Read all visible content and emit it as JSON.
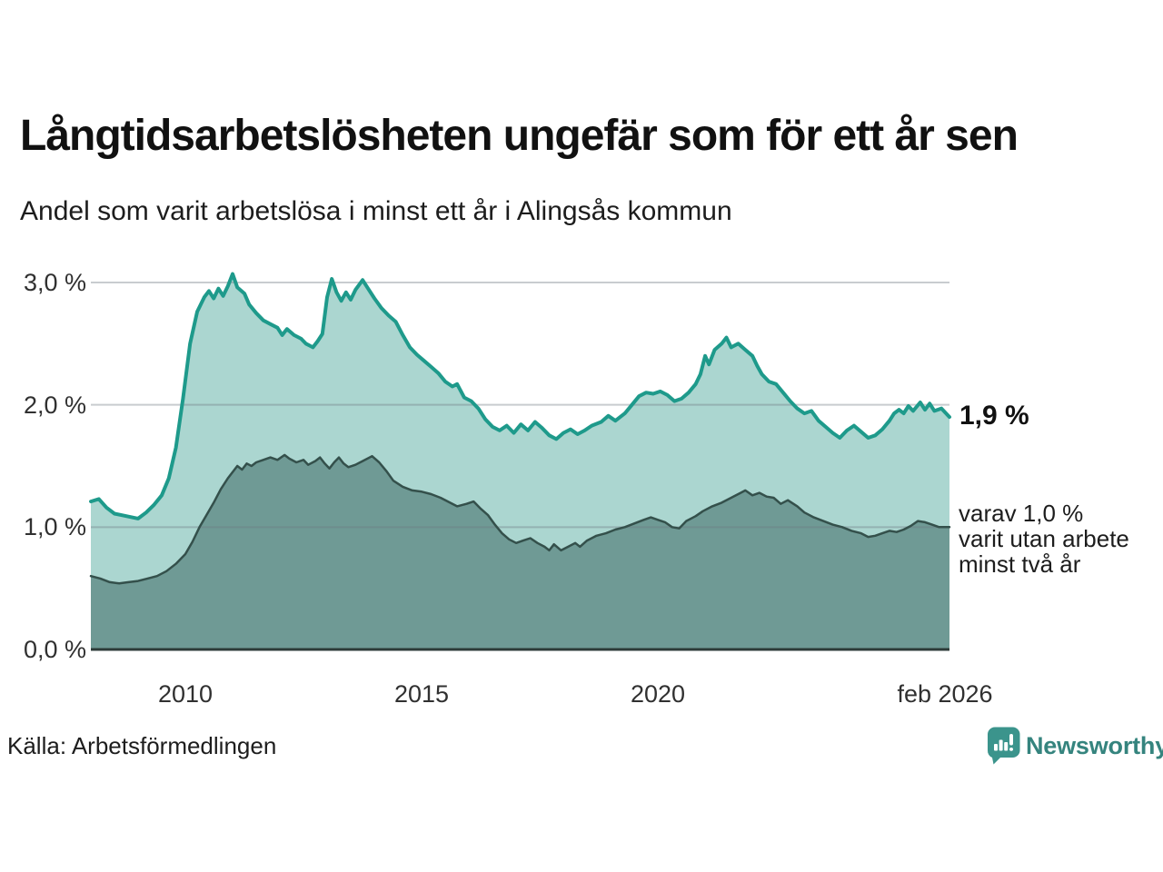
{
  "title": "Långtidsarbetslösheten ungefär som för ett år sen",
  "subtitle": "Andel som varit arbetslösa i minst ett år i Alingsås kommun",
  "source": "Källa: Arbetsförmedlingen",
  "branding": {
    "name": "Newsworthy"
  },
  "annotations": {
    "latest_total": "1,9 %",
    "note_lines": [
      "varav 1,0 %",
      "varit utan arbete",
      "minst två år"
    ]
  },
  "colors": {
    "teal_line": "#1e9a8b",
    "light_fill": "#abd6d0",
    "dark_line": "#34504b",
    "dark_fill": "#6f9a95",
    "gridline": "rgba(110,122,128,0.38)",
    "baseline": "#2d3b38",
    "brand_teal": "#35847e",
    "logo_teal": "#3b948c"
  },
  "chart_data": {
    "type": "area",
    "title": "Långtidsarbetslösheten ungefär som för ett år sen",
    "subtitle": "Andel som varit arbetslösa i minst ett år i Alingsås kommun",
    "unit": "%",
    "grid": "horizontal",
    "legend": "none",
    "x_range": [
      2008,
      2026.17
    ],
    "y_range": [
      0,
      3.1
    ],
    "y_gridlines": [
      1,
      2,
      3
    ],
    "y_ticks": [
      {
        "label": "3,0 %",
        "value": 3
      },
      {
        "label": "2,0 %",
        "value": 2
      },
      {
        "label": "1,0 %",
        "value": 1
      },
      {
        "label": "0,0 %",
        "value": 0
      }
    ],
    "x_ticks": [
      {
        "label": "2010",
        "x": 2010
      },
      {
        "label": "2015",
        "x": 2015
      },
      {
        "label": "2020",
        "x": 2020
      },
      {
        "label": "feb 2026",
        "x": 2026.08
      }
    ],
    "series": [
      {
        "name": "Andel som varit arbetslösa i minst ett år",
        "line_color": "#1e9a8b",
        "fill_color": "#abd6d0",
        "end_value": 1.9,
        "end_label": "1,9 %",
        "points": [
          [
            2008,
            1.21
          ],
          [
            2008.17,
            1.23
          ],
          [
            2008.33,
            1.16
          ],
          [
            2008.5,
            1.11
          ],
          [
            2008.75,
            1.09
          ],
          [
            2009,
            1.07
          ],
          [
            2009.17,
            1.12
          ],
          [
            2009.33,
            1.18
          ],
          [
            2009.5,
            1.26
          ],
          [
            2009.65,
            1.4
          ],
          [
            2009.8,
            1.65
          ],
          [
            2009.95,
            2.05
          ],
          [
            2010.1,
            2.5
          ],
          [
            2010.25,
            2.76
          ],
          [
            2010.4,
            2.88
          ],
          [
            2010.5,
            2.93
          ],
          [
            2010.6,
            2.87
          ],
          [
            2010.7,
            2.95
          ],
          [
            2010.8,
            2.89
          ],
          [
            2010.9,
            2.97
          ],
          [
            2011,
            3.07
          ],
          [
            2011.1,
            2.96
          ],
          [
            2011.25,
            2.91
          ],
          [
            2011.35,
            2.82
          ],
          [
            2011.5,
            2.75
          ],
          [
            2011.65,
            2.69
          ],
          [
            2011.8,
            2.66
          ],
          [
            2011.95,
            2.63
          ],
          [
            2012.05,
            2.57
          ],
          [
            2012.15,
            2.62
          ],
          [
            2012.3,
            2.57
          ],
          [
            2012.45,
            2.54
          ],
          [
            2012.55,
            2.5
          ],
          [
            2012.7,
            2.47
          ],
          [
            2012.8,
            2.52
          ],
          [
            2012.9,
            2.58
          ],
          [
            2013,
            2.88
          ],
          [
            2013.1,
            3.03
          ],
          [
            2013.2,
            2.92
          ],
          [
            2013.3,
            2.85
          ],
          [
            2013.4,
            2.92
          ],
          [
            2013.5,
            2.86
          ],
          [
            2013.6,
            2.94
          ],
          [
            2013.75,
            3.02
          ],
          [
            2013.85,
            2.96
          ],
          [
            2014,
            2.87
          ],
          [
            2014.15,
            2.79
          ],
          [
            2014.3,
            2.73
          ],
          [
            2014.45,
            2.68
          ],
          [
            2014.6,
            2.57
          ],
          [
            2014.75,
            2.47
          ],
          [
            2014.9,
            2.41
          ],
          [
            2015.05,
            2.36
          ],
          [
            2015.2,
            2.31
          ],
          [
            2015.35,
            2.26
          ],
          [
            2015.5,
            2.19
          ],
          [
            2015.65,
            2.15
          ],
          [
            2015.75,
            2.17
          ],
          [
            2015.9,
            2.06
          ],
          [
            2016.05,
            2.03
          ],
          [
            2016.2,
            1.97
          ],
          [
            2016.35,
            1.88
          ],
          [
            2016.5,
            1.82
          ],
          [
            2016.65,
            1.79
          ],
          [
            2016.8,
            1.83
          ],
          [
            2016.95,
            1.77
          ],
          [
            2017.1,
            1.84
          ],
          [
            2017.25,
            1.79
          ],
          [
            2017.4,
            1.86
          ],
          [
            2017.55,
            1.81
          ],
          [
            2017.7,
            1.75
          ],
          [
            2017.85,
            1.72
          ],
          [
            2018,
            1.77
          ],
          [
            2018.15,
            1.8
          ],
          [
            2018.3,
            1.76
          ],
          [
            2018.45,
            1.79
          ],
          [
            2018.6,
            1.83
          ],
          [
            2018.8,
            1.86
          ],
          [
            2018.95,
            1.91
          ],
          [
            2019.1,
            1.87
          ],
          [
            2019.3,
            1.93
          ],
          [
            2019.45,
            2.0
          ],
          [
            2019.6,
            2.07
          ],
          [
            2019.75,
            2.1
          ],
          [
            2019.9,
            2.09
          ],
          [
            2020.05,
            2.11
          ],
          [
            2020.2,
            2.08
          ],
          [
            2020.35,
            2.03
          ],
          [
            2020.5,
            2.05
          ],
          [
            2020.65,
            2.1
          ],
          [
            2020.8,
            2.17
          ],
          [
            2020.9,
            2.25
          ],
          [
            2021,
            2.4
          ],
          [
            2021.08,
            2.33
          ],
          [
            2021.2,
            2.45
          ],
          [
            2021.35,
            2.5
          ],
          [
            2021.45,
            2.55
          ],
          [
            2021.55,
            2.47
          ],
          [
            2021.7,
            2.5
          ],
          [
            2021.85,
            2.45
          ],
          [
            2022,
            2.4
          ],
          [
            2022.1,
            2.32
          ],
          [
            2022.2,
            2.25
          ],
          [
            2022.35,
            2.19
          ],
          [
            2022.5,
            2.17
          ],
          [
            2022.65,
            2.1
          ],
          [
            2022.8,
            2.03
          ],
          [
            2022.95,
            1.97
          ],
          [
            2023.1,
            1.93
          ],
          [
            2023.25,
            1.95
          ],
          [
            2023.4,
            1.87
          ],
          [
            2023.55,
            1.82
          ],
          [
            2023.7,
            1.77
          ],
          [
            2023.85,
            1.73
          ],
          [
            2024,
            1.79
          ],
          [
            2024.15,
            1.83
          ],
          [
            2024.3,
            1.78
          ],
          [
            2024.45,
            1.73
          ],
          [
            2024.6,
            1.75
          ],
          [
            2024.75,
            1.8
          ],
          [
            2024.9,
            1.87
          ],
          [
            2025,
            1.93
          ],
          [
            2025.1,
            1.96
          ],
          [
            2025.2,
            1.93
          ],
          [
            2025.3,
            1.99
          ],
          [
            2025.4,
            1.95
          ],
          [
            2025.55,
            2.02
          ],
          [
            2025.65,
            1.96
          ],
          [
            2025.75,
            2.01
          ],
          [
            2025.85,
            1.95
          ],
          [
            2026,
            1.97
          ],
          [
            2026.17,
            1.9
          ]
        ]
      },
      {
        "name": "Varav utan arbete i minst två år",
        "line_color": "#34504b",
        "fill_color": "#6f9a95",
        "end_value": 1.0,
        "end_label": "varav 1,0 % varit utan arbete minst två år",
        "points": [
          [
            2008,
            0.6
          ],
          [
            2008.2,
            0.58
          ],
          [
            2008.4,
            0.55
          ],
          [
            2008.6,
            0.54
          ],
          [
            2008.8,
            0.55
          ],
          [
            2009,
            0.56
          ],
          [
            2009.2,
            0.58
          ],
          [
            2009.4,
            0.6
          ],
          [
            2009.6,
            0.64
          ],
          [
            2009.8,
            0.7
          ],
          [
            2010,
            0.78
          ],
          [
            2010.15,
            0.88
          ],
          [
            2010.3,
            1.0
          ],
          [
            2010.45,
            1.1
          ],
          [
            2010.6,
            1.2
          ],
          [
            2010.75,
            1.31
          ],
          [
            2010.9,
            1.4
          ],
          [
            2011,
            1.45
          ],
          [
            2011.1,
            1.5
          ],
          [
            2011.2,
            1.47
          ],
          [
            2011.3,
            1.52
          ],
          [
            2011.4,
            1.5
          ],
          [
            2011.5,
            1.53
          ],
          [
            2011.65,
            1.55
          ],
          [
            2011.8,
            1.57
          ],
          [
            2011.95,
            1.55
          ],
          [
            2012.1,
            1.59
          ],
          [
            2012.2,
            1.56
          ],
          [
            2012.35,
            1.53
          ],
          [
            2012.5,
            1.55
          ],
          [
            2012.6,
            1.51
          ],
          [
            2012.75,
            1.54
          ],
          [
            2012.85,
            1.57
          ],
          [
            2012.95,
            1.52
          ],
          [
            2013.05,
            1.48
          ],
          [
            2013.15,
            1.53
          ],
          [
            2013.25,
            1.57
          ],
          [
            2013.35,
            1.52
          ],
          [
            2013.45,
            1.49
          ],
          [
            2013.6,
            1.51
          ],
          [
            2013.75,
            1.54
          ],
          [
            2013.95,
            1.58
          ],
          [
            2014.1,
            1.53
          ],
          [
            2014.25,
            1.46
          ],
          [
            2014.4,
            1.38
          ],
          [
            2014.6,
            1.33
          ],
          [
            2014.8,
            1.3
          ],
          [
            2015,
            1.29
          ],
          [
            2015.2,
            1.27
          ],
          [
            2015.4,
            1.24
          ],
          [
            2015.6,
            1.2
          ],
          [
            2015.75,
            1.17
          ],
          [
            2015.95,
            1.19
          ],
          [
            2016.1,
            1.21
          ],
          [
            2016.25,
            1.15
          ],
          [
            2016.4,
            1.1
          ],
          [
            2016.55,
            1.02
          ],
          [
            2016.7,
            0.95
          ],
          [
            2016.85,
            0.9
          ],
          [
            2017,
            0.87
          ],
          [
            2017.15,
            0.89
          ],
          [
            2017.3,
            0.91
          ],
          [
            2017.45,
            0.87
          ],
          [
            2017.6,
            0.84
          ],
          [
            2017.7,
            0.81
          ],
          [
            2017.8,
            0.86
          ],
          [
            2017.95,
            0.81
          ],
          [
            2018.1,
            0.84
          ],
          [
            2018.25,
            0.87
          ],
          [
            2018.35,
            0.84
          ],
          [
            2018.5,
            0.89
          ],
          [
            2018.7,
            0.93
          ],
          [
            2018.9,
            0.95
          ],
          [
            2019.1,
            0.98
          ],
          [
            2019.3,
            1.0
          ],
          [
            2019.5,
            1.03
          ],
          [
            2019.7,
            1.06
          ],
          [
            2019.85,
            1.08
          ],
          [
            2020,
            1.06
          ],
          [
            2020.15,
            1.04
          ],
          [
            2020.3,
            1.0
          ],
          [
            2020.45,
            0.99
          ],
          [
            2020.6,
            1.05
          ],
          [
            2020.8,
            1.09
          ],
          [
            2020.95,
            1.13
          ],
          [
            2021.15,
            1.17
          ],
          [
            2021.35,
            1.2
          ],
          [
            2021.55,
            1.24
          ],
          [
            2021.75,
            1.28
          ],
          [
            2021.85,
            1.3
          ],
          [
            2022,
            1.26
          ],
          [
            2022.15,
            1.28
          ],
          [
            2022.3,
            1.25
          ],
          [
            2022.45,
            1.24
          ],
          [
            2022.6,
            1.19
          ],
          [
            2022.75,
            1.22
          ],
          [
            2022.95,
            1.17
          ],
          [
            2023.1,
            1.12
          ],
          [
            2023.3,
            1.08
          ],
          [
            2023.5,
            1.05
          ],
          [
            2023.7,
            1.02
          ],
          [
            2023.9,
            1.0
          ],
          [
            2024.1,
            0.97
          ],
          [
            2024.3,
            0.95
          ],
          [
            2024.45,
            0.92
          ],
          [
            2024.6,
            0.93
          ],
          [
            2024.75,
            0.95
          ],
          [
            2024.9,
            0.97
          ],
          [
            2025.05,
            0.96
          ],
          [
            2025.2,
            0.98
          ],
          [
            2025.35,
            1.01
          ],
          [
            2025.5,
            1.05
          ],
          [
            2025.65,
            1.04
          ],
          [
            2025.8,
            1.02
          ],
          [
            2025.95,
            1.0
          ],
          [
            2026.17,
            1.0
          ]
        ]
      }
    ]
  }
}
